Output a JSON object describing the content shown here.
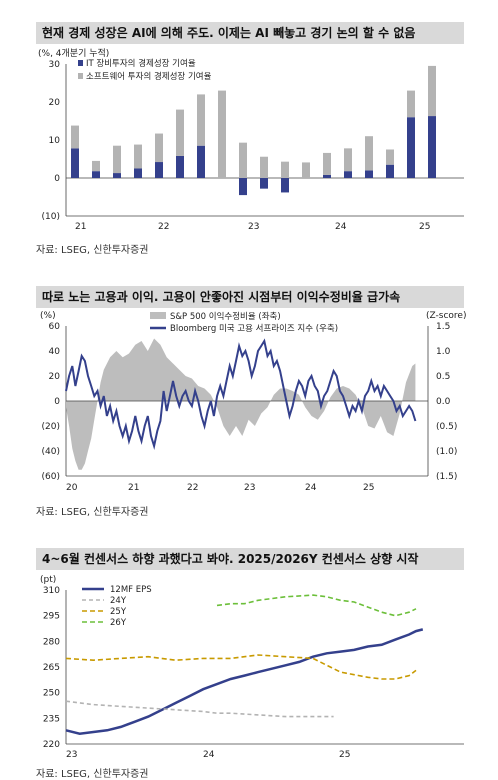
{
  "chart_data": [
    {
      "type": "bar",
      "title": "현재 경제 성장은 AI에 의해 주도. 이제는 AI 빼놓고 경기 논의 할 수 없음",
      "unit_label": "(%, 4개분기 누적)",
      "ylim": [
        -10,
        30
      ],
      "y_ticks": [
        "30",
        "20",
        "10",
        "0",
        "(10)"
      ],
      "x_labels": [
        "21",
        "22",
        "23",
        "24",
        "25"
      ],
      "series": [
        {
          "name": "IT 장비투자의 경제성장 기여율",
          "color": "#34408c",
          "values": [
            7.8,
            1.8,
            1.3,
            2.5,
            4.2,
            5.8,
            8.5,
            0,
            -4.5,
            -2.8,
            -3.8,
            0,
            0.8,
            1.8,
            2,
            3.5,
            16,
            16.3
          ]
        },
        {
          "name": "소프트웨어 투자의 경제성장 기여율",
          "color": "#b3b3b3",
          "values": [
            6,
            2.7,
            7.2,
            6.3,
            7.5,
            12.2,
            13.5,
            23,
            9.3,
            5.6,
            4.3,
            4.1,
            5.8,
            6,
            9,
            4,
            7,
            13.2
          ]
        }
      ],
      "source": "자료: LSEG, 신한투자증권"
    },
    {
      "type": "line",
      "title": "따로 노는 고용과 이익. 고용이 안좋아진 시점부터 이익수정비율 급가속",
      "left_unit": "(%)",
      "right_unit": "(Z-score)",
      "ylim_left": [
        -60,
        60
      ],
      "ylim_right": [
        -1.5,
        1.5
      ],
      "y_ticks_left": [
        "60",
        "40",
        "20",
        "0",
        "(20)",
        "(40)",
        "(60)"
      ],
      "y_ticks_right": [
        "1.5",
        "1.0",
        "0.5",
        "0.0",
        "(0.5)",
        "(1.0)",
        "(1.5)"
      ],
      "x_labels": [
        "20",
        "21",
        "22",
        "23",
        "24",
        "25"
      ],
      "series": [
        {
          "name": "S&P 500 이익수정비율 (좌축)",
          "color": "#b3b3b3",
          "kind": "area"
        },
        {
          "name": "Bloomberg 미국 고용 서프라이즈 지수 (우축)",
          "color": "#34408c",
          "kind": "line"
        }
      ],
      "bar_points": [
        [
          2020.0,
          -5
        ],
        [
          2020.05,
          -20
        ],
        [
          2020.1,
          -38
        ],
        [
          2020.15,
          -48
        ],
        [
          2020.2,
          -55
        ],
        [
          2020.25,
          -55
        ],
        [
          2020.3,
          -50
        ],
        [
          2020.35,
          -40
        ],
        [
          2020.4,
          -30
        ],
        [
          2020.45,
          -15
        ],
        [
          2020.5,
          0
        ],
        [
          2020.55,
          15
        ],
        [
          2020.6,
          25
        ],
        [
          2020.7,
          35
        ],
        [
          2020.8,
          40
        ],
        [
          2020.9,
          35
        ],
        [
          2021.0,
          38
        ],
        [
          2021.1,
          45
        ],
        [
          2021.2,
          48
        ],
        [
          2021.3,
          40
        ],
        [
          2021.4,
          50
        ],
        [
          2021.5,
          45
        ],
        [
          2021.6,
          35
        ],
        [
          2021.7,
          30
        ],
        [
          2021.8,
          25
        ],
        [
          2021.9,
          20
        ],
        [
          2022.0,
          18
        ],
        [
          2022.1,
          12
        ],
        [
          2022.2,
          10
        ],
        [
          2022.3,
          5
        ],
        [
          2022.4,
          -5
        ],
        [
          2022.5,
          -20
        ],
        [
          2022.6,
          -28
        ],
        [
          2022.7,
          -20
        ],
        [
          2022.8,
          -28
        ],
        [
          2022.9,
          -15
        ],
        [
          2023.0,
          -20
        ],
        [
          2023.1,
          -10
        ],
        [
          2023.2,
          -5
        ],
        [
          2023.3,
          5
        ],
        [
          2023.4,
          10
        ],
        [
          2023.5,
          10
        ],
        [
          2023.6,
          8
        ],
        [
          2023.7,
          5
        ],
        [
          2023.8,
          -5
        ],
        [
          2023.9,
          -12
        ],
        [
          2024.0,
          -15
        ],
        [
          2024.1,
          -8
        ],
        [
          2024.2,
          3
        ],
        [
          2024.3,
          10
        ],
        [
          2024.4,
          12
        ],
        [
          2024.5,
          10
        ],
        [
          2024.6,
          5
        ],
        [
          2024.7,
          -5
        ],
        [
          2024.8,
          -20
        ],
        [
          2024.9,
          -22
        ],
        [
          2025.0,
          -12
        ],
        [
          2025.1,
          -25
        ],
        [
          2025.2,
          -28
        ],
        [
          2025.3,
          -10
        ],
        [
          2025.4,
          15
        ],
        [
          2025.5,
          28
        ],
        [
          2025.55,
          30
        ]
      ],
      "line_points": [
        [
          2020.0,
          0.2
        ],
        [
          2020.05,
          0.5
        ],
        [
          2020.1,
          0.7
        ],
        [
          2020.15,
          0.3
        ],
        [
          2020.2,
          0.6
        ],
        [
          2020.25,
          0.9
        ],
        [
          2020.3,
          0.8
        ],
        [
          2020.35,
          0.5
        ],
        [
          2020.4,
          0.3
        ],
        [
          2020.45,
          0.1
        ],
        [
          2020.5,
          0.2
        ],
        [
          2020.55,
          -0.1
        ],
        [
          2020.6,
          0.1
        ],
        [
          2020.65,
          -0.3
        ],
        [
          2020.7,
          -0.1
        ],
        [
          2020.75,
          -0.4
        ],
        [
          2020.8,
          -0.2
        ],
        [
          2020.85,
          -0.5
        ],
        [
          2020.9,
          -0.7
        ],
        [
          2020.95,
          -0.5
        ],
        [
          2021.0,
          -0.8
        ],
        [
          2021.05,
          -0.6
        ],
        [
          2021.1,
          -0.3
        ],
        [
          2021.15,
          -0.6
        ],
        [
          2021.2,
          -0.8
        ],
        [
          2021.25,
          -0.5
        ],
        [
          2021.3,
          -0.3
        ],
        [
          2021.35,
          -0.7
        ],
        [
          2021.4,
          -0.9
        ],
        [
          2021.45,
          -0.6
        ],
        [
          2021.5,
          -0.4
        ],
        [
          2021.55,
          0.2
        ],
        [
          2021.6,
          -0.2
        ],
        [
          2021.65,
          0.1
        ],
        [
          2021.7,
          0.4
        ],
        [
          2021.75,
          0.1
        ],
        [
          2021.8,
          -0.1
        ],
        [
          2021.85,
          0.1
        ],
        [
          2021.9,
          0.2
        ],
        [
          2021.95,
          0.0
        ],
        [
          2022.0,
          -0.1
        ],
        [
          2022.05,
          0.2
        ],
        [
          2022.1,
          0.0
        ],
        [
          2022.15,
          -0.3
        ],
        [
          2022.2,
          -0.5
        ],
        [
          2022.25,
          -0.2
        ],
        [
          2022.3,
          0.0
        ],
        [
          2022.35,
          -0.3
        ],
        [
          2022.4,
          0.1
        ],
        [
          2022.45,
          0.3
        ],
        [
          2022.5,
          0.1
        ],
        [
          2022.55,
          0.4
        ],
        [
          2022.6,
          0.7
        ],
        [
          2022.65,
          0.5
        ],
        [
          2022.7,
          0.8
        ],
        [
          2022.75,
          1.1
        ],
        [
          2022.8,
          0.9
        ],
        [
          2022.85,
          1.0
        ],
        [
          2022.9,
          0.8
        ],
        [
          2022.95,
          0.5
        ],
        [
          2023.0,
          0.7
        ],
        [
          2023.05,
          1.0
        ],
        [
          2023.1,
          1.1
        ],
        [
          2023.15,
          1.2
        ],
        [
          2023.2,
          0.9
        ],
        [
          2023.25,
          1.0
        ],
        [
          2023.3,
          0.7
        ],
        [
          2023.35,
          0.8
        ],
        [
          2023.4,
          0.6
        ],
        [
          2023.45,
          0.3
        ],
        [
          2023.5,
          0.0
        ],
        [
          2023.55,
          -0.3
        ],
        [
          2023.6,
          -0.1
        ],
        [
          2023.65,
          0.2
        ],
        [
          2023.7,
          0.4
        ],
        [
          2023.75,
          0.3
        ],
        [
          2023.8,
          0.1
        ],
        [
          2023.85,
          0.4
        ],
        [
          2023.9,
          0.5
        ],
        [
          2023.95,
          0.3
        ],
        [
          2024.0,
          0.2
        ],
        [
          2024.05,
          -0.1
        ],
        [
          2024.1,
          0.1
        ],
        [
          2024.15,
          0.2
        ],
        [
          2024.2,
          0.4
        ],
        [
          2024.25,
          0.6
        ],
        [
          2024.3,
          0.5
        ],
        [
          2024.35,
          0.2
        ],
        [
          2024.4,
          0.1
        ],
        [
          2024.45,
          -0.1
        ],
        [
          2024.5,
          -0.3
        ],
        [
          2024.55,
          -0.1
        ],
        [
          2024.6,
          -0.2
        ],
        [
          2024.65,
          0.0
        ],
        [
          2024.7,
          -0.2
        ],
        [
          2024.75,
          0.1
        ],
        [
          2024.8,
          0.2
        ],
        [
          2024.85,
          0.4
        ],
        [
          2024.9,
          0.2
        ],
        [
          2024.95,
          0.3
        ],
        [
          2025.0,
          0.1
        ],
        [
          2025.05,
          0.3
        ],
        [
          2025.1,
          0.2
        ],
        [
          2025.15,
          0.1
        ],
        [
          2025.2,
          0.0
        ],
        [
          2025.25,
          -0.2
        ],
        [
          2025.3,
          -0.1
        ],
        [
          2025.35,
          -0.3
        ],
        [
          2025.4,
          -0.2
        ],
        [
          2025.45,
          -0.1
        ],
        [
          2025.5,
          -0.2
        ],
        [
          2025.55,
          -0.4
        ]
      ],
      "source": "자료: LSEG, 신한투자증권"
    },
    {
      "type": "line",
      "title": "4~6월 컨센서스 하향 과했다고 봐야. 2025/2026Y 컨센서스 상향 시작",
      "unit_label": "(pt)",
      "ylim": [
        220,
        310
      ],
      "y_ticks": [
        "310",
        "295",
        "280",
        "265",
        "250",
        "235",
        "220"
      ],
      "x_labels": [
        "23",
        "24",
        "25"
      ],
      "series": [
        {
          "name": "12MF EPS",
          "color": "#34408c",
          "dash": "",
          "points": [
            [
              2023.0,
              228
            ],
            [
              2023.1,
              226
            ],
            [
              2023.2,
              227
            ],
            [
              2023.3,
              228
            ],
            [
              2023.4,
              230
            ],
            [
              2023.5,
              233
            ],
            [
              2023.6,
              236
            ],
            [
              2023.7,
              240
            ],
            [
              2023.8,
              244
            ],
            [
              2023.9,
              248
            ],
            [
              2024.0,
              252
            ],
            [
              2024.1,
              255
            ],
            [
              2024.2,
              258
            ],
            [
              2024.3,
              260
            ],
            [
              2024.4,
              262
            ],
            [
              2024.5,
              264
            ],
            [
              2024.6,
              266
            ],
            [
              2024.7,
              268
            ],
            [
              2024.8,
              271
            ],
            [
              2024.9,
              273
            ],
            [
              2025.0,
              274
            ],
            [
              2025.1,
              275
            ],
            [
              2025.2,
              277
            ],
            [
              2025.3,
              278
            ],
            [
              2025.4,
              281
            ],
            [
              2025.5,
              284
            ],
            [
              2025.55,
              286
            ],
            [
              2025.6,
              287
            ]
          ]
        },
        {
          "name": "24Y",
          "color": "#b3b3b3",
          "dash": "4,3",
          "points": [
            [
              2023.0,
              245
            ],
            [
              2023.2,
              243
            ],
            [
              2023.4,
              242
            ],
            [
              2023.6,
              241
            ],
            [
              2023.8,
              240
            ],
            [
              2024.0,
              239
            ],
            [
              2024.1,
              238
            ],
            [
              2024.2,
              238
            ],
            [
              2024.4,
              237
            ],
            [
              2024.6,
              236
            ],
            [
              2024.8,
              236
            ],
            [
              2024.95,
              236
            ]
          ]
        },
        {
          "name": "25Y",
          "color": "#c89a00",
          "dash": "5,3",
          "points": [
            [
              2023.0,
              270
            ],
            [
              2023.2,
              269
            ],
            [
              2023.4,
              270
            ],
            [
              2023.6,
              271
            ],
            [
              2023.8,
              269
            ],
            [
              2024.0,
              270
            ],
            [
              2024.2,
              270
            ],
            [
              2024.4,
              272
            ],
            [
              2024.6,
              271
            ],
            [
              2024.8,
              270
            ],
            [
              2025.0,
              262
            ],
            [
              2025.2,
              259
            ],
            [
              2025.3,
              258
            ],
            [
              2025.4,
              258
            ],
            [
              2025.5,
              260
            ],
            [
              2025.55,
              263
            ]
          ]
        },
        {
          "name": "26Y",
          "color": "#6cbf3a",
          "dash": "5,3",
          "points": [
            [
              2024.1,
              301
            ],
            [
              2024.2,
              302
            ],
            [
              2024.3,
              302
            ],
            [
              2024.4,
              304
            ],
            [
              2024.6,
              306
            ],
            [
              2024.8,
              307
            ],
            [
              2024.9,
              306
            ],
            [
              2025.0,
              304
            ],
            [
              2025.1,
              303
            ],
            [
              2025.2,
              300
            ],
            [
              2025.3,
              297
            ],
            [
              2025.4,
              295
            ],
            [
              2025.5,
              297
            ],
            [
              2025.55,
              299
            ]
          ]
        }
      ],
      "source": "자료: LSEG, 신한투자증권"
    }
  ]
}
